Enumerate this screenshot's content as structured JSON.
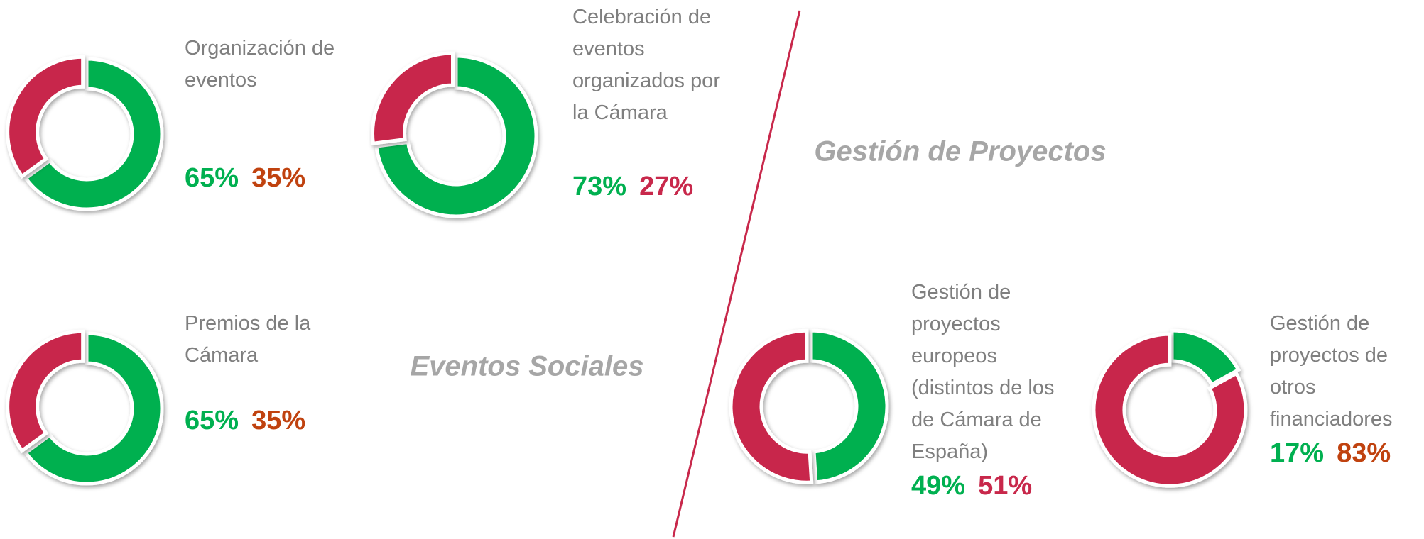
{
  "chart_data": [
    {
      "type": "pie",
      "title": "Organización de eventos",
      "categories": [
        null,
        null
      ],
      "values": [
        65,
        35
      ],
      "value_labels": [
        "65%",
        "35%"
      ],
      "colors": [
        "#00b050",
        "#c8284b"
      ],
      "label_colors": [
        "#00b050",
        "#c0420f"
      ]
    },
    {
      "type": "pie",
      "title": "Celebración de eventos organizados por la Cámara",
      "categories": [
        null,
        null
      ],
      "values": [
        73,
        27
      ],
      "value_labels": [
        "73%",
        "27%"
      ],
      "colors": [
        "#00b050",
        "#c8284b"
      ],
      "label_colors": [
        "#00b050",
        "#c8284b"
      ]
    },
    {
      "type": "pie",
      "title": "Premios de la Cámara",
      "categories": [
        null,
        null
      ],
      "values": [
        65,
        35
      ],
      "value_labels": [
        "65%",
        "35%"
      ],
      "colors": [
        "#00b050",
        "#c8284b"
      ],
      "label_colors": [
        "#00b050",
        "#c0420f"
      ]
    },
    {
      "type": "pie",
      "title": "Gestión de proyectos europeos (distintos de los de Cámara de España)",
      "categories": [
        null,
        null
      ],
      "values": [
        49,
        51
      ],
      "value_labels": [
        "49%",
        "51%"
      ],
      "colors": [
        "#00b050",
        "#c8284b"
      ],
      "label_colors": [
        "#00b050",
        "#c8284b"
      ]
    },
    {
      "type": "pie",
      "title": "Gestión de proyectos de otros financiadores",
      "categories": [
        null,
        null
      ],
      "values": [
        17,
        83
      ],
      "value_labels": [
        "17%",
        "83%"
      ],
      "colors": [
        "#00b050",
        "#c8284b"
      ],
      "label_colors": [
        "#00b050",
        "#c0420f"
      ]
    }
  ],
  "sections": [
    "Eventos Sociales",
    "Gestión de Proyectos"
  ]
}
